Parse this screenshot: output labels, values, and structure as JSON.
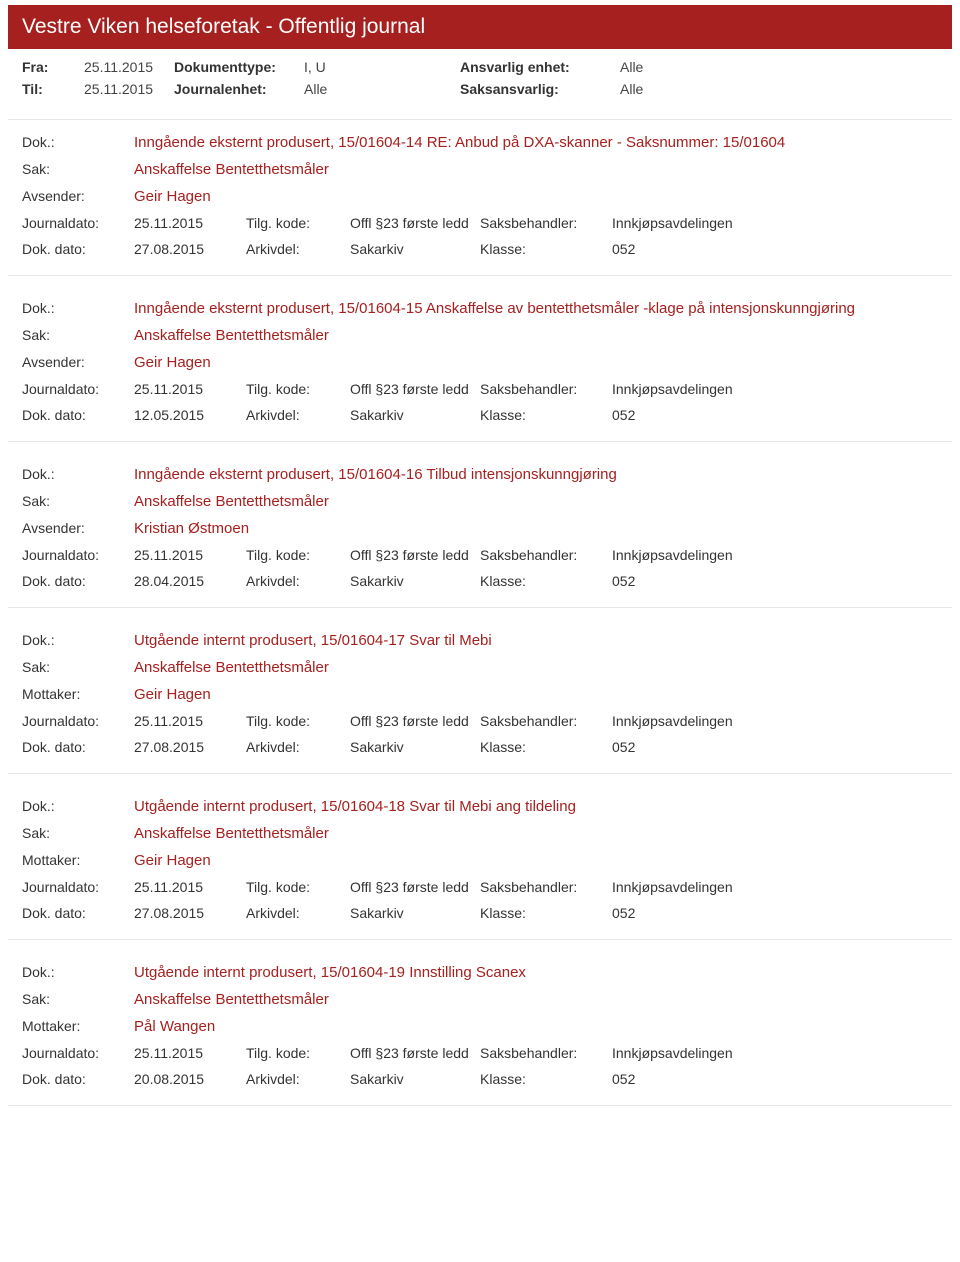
{
  "header": {
    "title": "Vestre Viken helseforetak - Offentlig journal"
  },
  "meta": {
    "fra_label": "Fra:",
    "fra_value": "25.11.2015",
    "til_label": "Til:",
    "til_value": "25.11.2015",
    "doktype_label": "Dokumenttype:",
    "doktype_value": "I, U",
    "journalenhet_label": "Journalenhet:",
    "journalenhet_value": "Alle",
    "ansvarlig_label": "Ansvarlig enhet:",
    "ansvarlig_value": "Alle",
    "saksansvarlig_label": "Saksansvarlig:",
    "saksansvarlig_value": "Alle"
  },
  "labels": {
    "dok": "Dok.:",
    "sak": "Sak:",
    "avsender": "Avsender:",
    "mottaker": "Mottaker:",
    "journaldato": "Journaldato:",
    "tilgkode": "Tilg. kode:",
    "saksbehandler": "Saksbehandler:",
    "dokdato": "Dok. dato:",
    "arkivdel": "Arkivdel:",
    "klasse": "Klasse:"
  },
  "entries": [
    {
      "dok": "Inngående eksternt produsert, 15/01604-14 RE: Anbud på DXA-skanner - Saksnummer: 15/01604",
      "sak": "Anskaffelse Bentetthetsmåler",
      "party_label": "Avsender:",
      "party": "Geir Hagen",
      "journaldato": "25.11.2015",
      "tilgkode": "Offl §23 første ledd",
      "saksbehandler": "Innkjøpsavdelingen",
      "dokdato": "27.08.2015",
      "arkivdel": "Sakarkiv",
      "klasse": "052"
    },
    {
      "dok": "Inngående eksternt produsert, 15/01604-15 Anskaffelse av bentetthetsmåler -klage på intensjonskunngjøring",
      "sak": "Anskaffelse Bentetthetsmåler",
      "party_label": "Avsender:",
      "party": "Geir Hagen",
      "journaldato": "25.11.2015",
      "tilgkode": "Offl §23 første ledd",
      "saksbehandler": "Innkjøpsavdelingen",
      "dokdato": "12.05.2015",
      "arkivdel": "Sakarkiv",
      "klasse": "052"
    },
    {
      "dok": "Inngående eksternt produsert, 15/01604-16 Tilbud intensjonskunngjøring",
      "sak": "Anskaffelse Bentetthetsmåler",
      "party_label": "Avsender:",
      "party": "Kristian Østmoen",
      "journaldato": "25.11.2015",
      "tilgkode": "Offl §23 første ledd",
      "saksbehandler": "Innkjøpsavdelingen",
      "dokdato": "28.04.2015",
      "arkivdel": "Sakarkiv",
      "klasse": "052"
    },
    {
      "dok": "Utgående internt produsert, 15/01604-17 Svar til Mebi",
      "sak": "Anskaffelse Bentetthetsmåler",
      "party_label": "Mottaker:",
      "party": "Geir Hagen",
      "journaldato": "25.11.2015",
      "tilgkode": "Offl §23 første ledd",
      "saksbehandler": "Innkjøpsavdelingen",
      "dokdato": "27.08.2015",
      "arkivdel": "Sakarkiv",
      "klasse": "052"
    },
    {
      "dok": "Utgående internt produsert, 15/01604-18 Svar til Mebi ang tildeling",
      "sak": "Anskaffelse Bentetthetsmåler",
      "party_label": "Mottaker:",
      "party": "Geir Hagen",
      "journaldato": "25.11.2015",
      "tilgkode": "Offl §23 første ledd",
      "saksbehandler": "Innkjøpsavdelingen",
      "dokdato": "27.08.2015",
      "arkivdel": "Sakarkiv",
      "klasse": "052"
    },
    {
      "dok": "Utgående internt produsert, 15/01604-19 Innstilling Scanex",
      "sak": "Anskaffelse Bentetthetsmåler",
      "party_label": "Mottaker:",
      "party": "Pål Wangen",
      "journaldato": "25.11.2015",
      "tilgkode": "Offl §23 første ledd",
      "saksbehandler": "Innkjøpsavdelingen",
      "dokdato": "20.08.2015",
      "arkivdel": "Sakarkiv",
      "klasse": "052"
    }
  ]
}
